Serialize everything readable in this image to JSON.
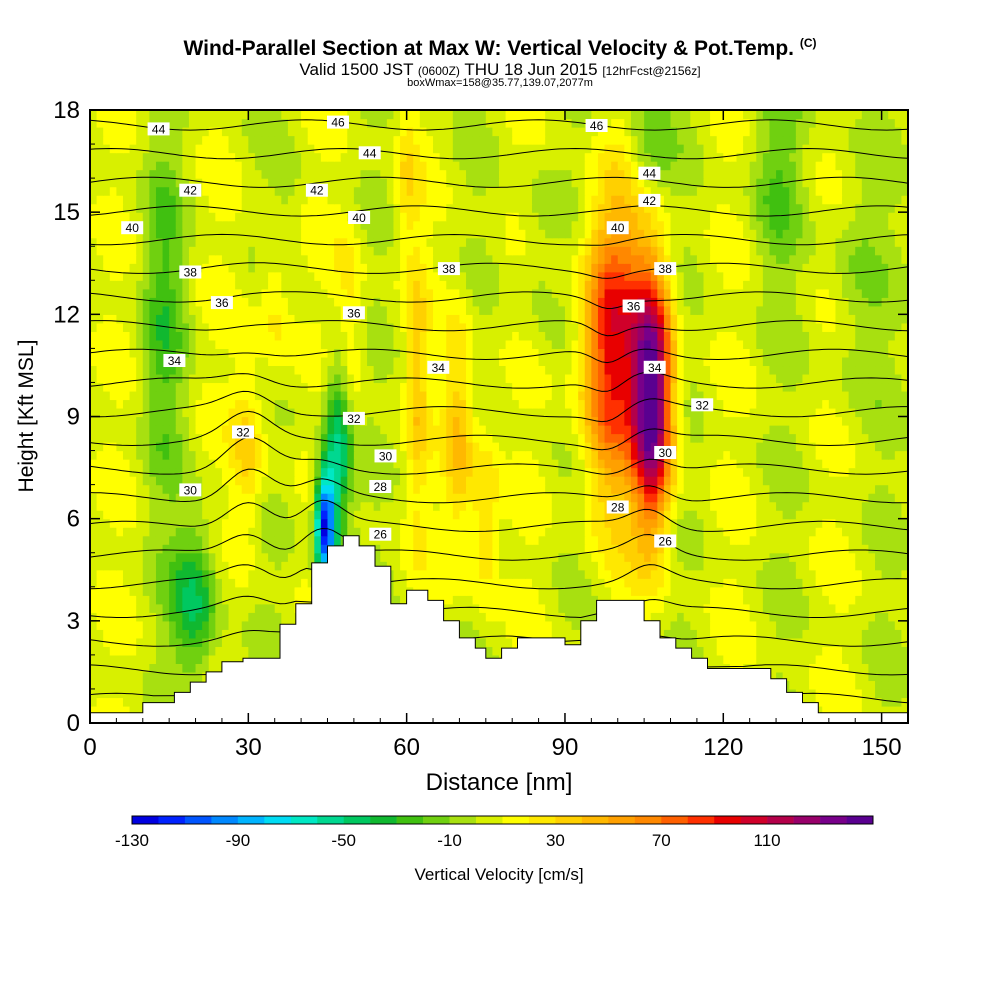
{
  "header": {
    "title": "Wind-Parallel Section at Max W: Vertical Velocity & Pot.Temp.",
    "copyright": "(C)",
    "valid_main": "Valid 1500 JST",
    "valid_utc": "(0600Z)",
    "valid_date": "THU 18 Jun 2015",
    "forecast": "[12hrFcst@2156z]",
    "boxinfo": "boxWmax=158@35.77,139.07,2077m"
  },
  "chart_data": {
    "type": "heatmap",
    "xlabel": "Distance [nm]",
    "ylabel": "Height [Kft MSL]",
    "xlim": [
      0,
      155
    ],
    "ylim": [
      0,
      18
    ],
    "xticks": [
      0,
      30,
      60,
      90,
      120,
      150
    ],
    "yticks": [
      0,
      3,
      6,
      9,
      12,
      15,
      18
    ],
    "colorbar": {
      "label": "Vertical Velocity [cm/s]",
      "min": -130,
      "max": 150,
      "step": 10,
      "tick_labels": [
        -130,
        -90,
        -50,
        -10,
        30,
        70,
        110
      ],
      "colors": [
        "#0000e0",
        "#0022ff",
        "#0055ff",
        "#0088ff",
        "#00b4ff",
        "#00dcf4",
        "#00e8c4",
        "#00d890",
        "#00c860",
        "#10b830",
        "#40c010",
        "#70d010",
        "#a8e010",
        "#d8f000",
        "#ffff00",
        "#ffe800",
        "#ffd000",
        "#ffb800",
        "#ffa000",
        "#ff8800",
        "#ff6000",
        "#ff3000",
        "#e80000",
        "#d0002a",
        "#b4004a",
        "#98006a",
        "#78008a",
        "#5a0090"
      ]
    },
    "theta_contours": {
      "unit_note": "potential temperature contour labels",
      "levels": [
        26,
        27,
        28,
        29,
        30,
        31,
        32,
        33,
        34,
        35,
        36,
        37,
        38,
        39,
        40,
        41,
        42,
        43,
        44,
        45,
        46
      ],
      "labels": [
        {
          "text": "46",
          "x": 47,
          "y": 17.6
        },
        {
          "text": "46",
          "x": 96,
          "y": 17.5
        },
        {
          "text": "44",
          "x": 13,
          "y": 17.4
        },
        {
          "text": "44",
          "x": 53,
          "y": 16.7
        },
        {
          "text": "44",
          "x": 106,
          "y": 16.1
        },
        {
          "text": "42",
          "x": 19,
          "y": 15.6
        },
        {
          "text": "42",
          "x": 43,
          "y": 15.6
        },
        {
          "text": "42",
          "x": 106,
          "y": 15.3
        },
        {
          "text": "40",
          "x": 8,
          "y": 14.5
        },
        {
          "text": "40",
          "x": 51,
          "y": 14.8
        },
        {
          "text": "40",
          "x": 100,
          "y": 14.5
        },
        {
          "text": "38",
          "x": 19,
          "y": 13.2
        },
        {
          "text": "38",
          "x": 68,
          "y": 13.3
        },
        {
          "text": "38",
          "x": 109,
          "y": 13.3
        },
        {
          "text": "36",
          "x": 25,
          "y": 12.3
        },
        {
          "text": "36",
          "x": 50,
          "y": 12.0
        },
        {
          "text": "36",
          "x": 103,
          "y": 12.2
        },
        {
          "text": "34",
          "x": 16,
          "y": 10.6
        },
        {
          "text": "34",
          "x": 66,
          "y": 10.4
        },
        {
          "text": "34",
          "x": 107,
          "y": 10.4
        },
        {
          "text": "32",
          "x": 29,
          "y": 8.5
        },
        {
          "text": "32",
          "x": 50,
          "y": 8.9
        },
        {
          "text": "32",
          "x": 116,
          "y": 9.3
        },
        {
          "text": "30",
          "x": 19,
          "y": 6.8
        },
        {
          "text": "30",
          "x": 56,
          "y": 7.8
        },
        {
          "text": "30",
          "x": 109,
          "y": 7.9
        },
        {
          "text": "28",
          "x": 55,
          "y": 6.9
        },
        {
          "text": "28",
          "x": 100,
          "y": 6.3
        },
        {
          "text": "26",
          "x": 55,
          "y": 5.5
        },
        {
          "text": "26",
          "x": 109,
          "y": 5.3
        }
      ]
    },
    "terrain_profile": {
      "unit_note": "terrain height (Kft) along distance (nm)",
      "x": [
        0,
        10,
        16,
        19,
        22,
        25,
        29,
        36,
        39,
        42,
        45,
        48,
        51,
        54,
        57,
        60,
        64,
        67,
        70,
        73,
        75,
        78,
        81,
        84,
        87,
        90,
        93,
        96,
        99,
        102,
        105,
        108,
        111,
        114,
        117,
        120,
        123,
        126,
        129,
        132,
        135,
        138,
        141,
        144,
        147,
        150,
        155
      ],
      "y": [
        0.3,
        0.6,
        0.9,
        1.2,
        1.5,
        1.8,
        1.9,
        2.9,
        3.5,
        4.7,
        5.2,
        5.5,
        5.2,
        4.6,
        3.5,
        3.9,
        3.6,
        3.0,
        2.5,
        2.2,
        1.9,
        2.2,
        2.5,
        2.5,
        2.5,
        2.3,
        3.0,
        3.6,
        3.6,
        3.6,
        3.0,
        2.5,
        2.2,
        1.9,
        1.6,
        1.6,
        1.6,
        1.6,
        1.3,
        0.9,
        0.6,
        0.3,
        0.3,
        0.3,
        0.3,
        0.3,
        0.3
      ]
    },
    "features": [
      {
        "name": "downdraft",
        "x": 44,
        "y": 5.6,
        "w_min": -120
      },
      {
        "name": "updraft",
        "x": 106,
        "y": 9.5,
        "w_max": 158
      }
    ]
  }
}
